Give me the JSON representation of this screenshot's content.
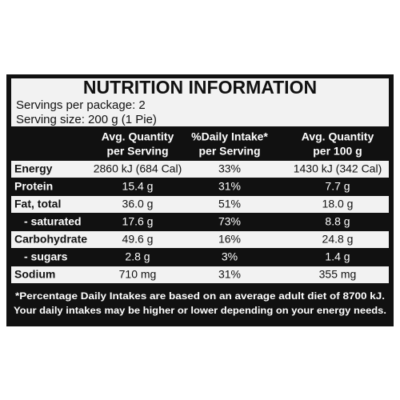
{
  "header": {
    "title": "NUTRITION INFORMATION",
    "servings": "Servings per package: 2",
    "serving_size": "Serving size: 200 g (1 Pie)"
  },
  "table": {
    "columns": [
      [
        "Avg. Quantity",
        "per Serving"
      ],
      [
        "%Daily Intake*",
        "per Serving"
      ],
      [
        "Avg. Quantity",
        "per 100 g"
      ]
    ],
    "rows": [
      [
        "Energy",
        "2860 kJ (684 Cal)",
        "33%",
        "1430 kJ (342 Cal)"
      ],
      [
        "Protein",
        "15.4 g",
        "31%",
        "7.7 g"
      ],
      [
        "Fat, total",
        "36.0 g",
        "51%",
        "18.0 g"
      ],
      [
        "- saturated",
        "17.6 g",
        "73%",
        "8.8 g"
      ],
      [
        "Carbohydrate",
        "49.6 g",
        "16%",
        "24.8 g"
      ],
      [
        "- sugars",
        "2.8 g",
        "3%",
        "1.4 g"
      ],
      [
        "Sodium",
        "710 mg",
        "31%",
        "355 mg"
      ]
    ]
  },
  "footnote": [
    "*Percentage Daily Intakes are based on an average adult diet of 8700 kJ.",
    "Your daily intakes may be higher or lower depending on your energy needs."
  ]
}
